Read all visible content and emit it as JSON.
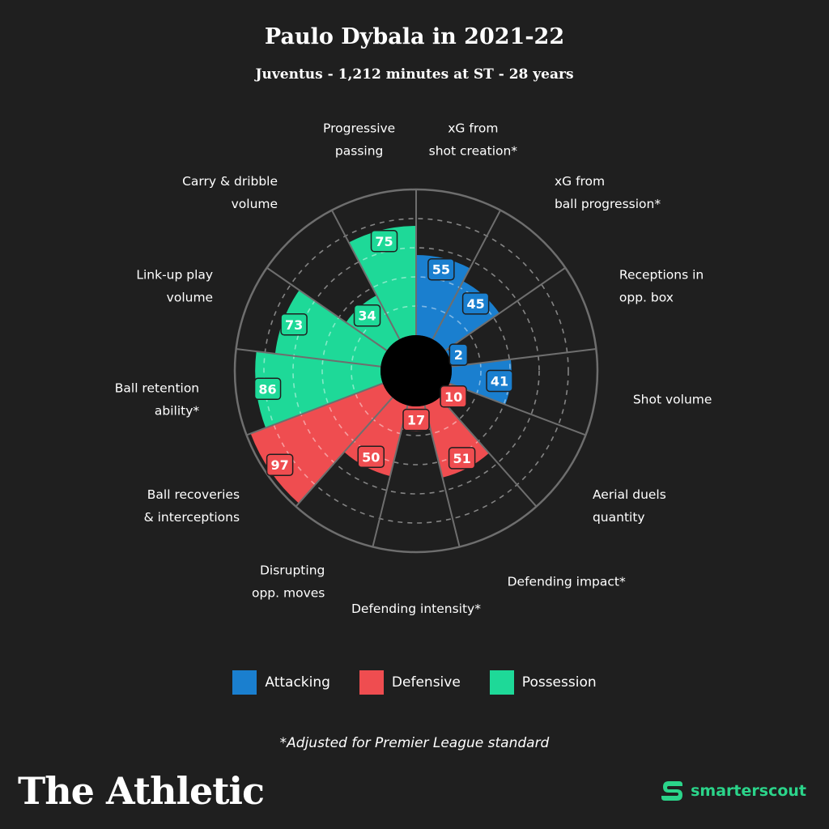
{
  "header": {
    "title": "Paulo Dybala in 2021-22",
    "subtitle": "Juventus - 1,212 minutes at ST - 28 years"
  },
  "colors": {
    "Attacking": "#1a7fcf",
    "Defensive": "#ef4d50",
    "Possession": "#1ed998",
    "background": "#1f1f1f"
  },
  "chart_data": {
    "type": "polar-bar",
    "max": 100,
    "rings": [
      20,
      40,
      60,
      80
    ],
    "segments": [
      {
        "label": [
          "xG from",
          "shot creation*"
        ],
        "value": 55,
        "category": "Attacking"
      },
      {
        "label": [
          "xG from",
          "ball progression*"
        ],
        "value": 45,
        "category": "Attacking"
      },
      {
        "label": [
          "Receptions in",
          "opp. box"
        ],
        "value": 2,
        "category": "Attacking"
      },
      {
        "label": [
          "Shot volume"
        ],
        "value": 41,
        "category": "Attacking"
      },
      {
        "label": [
          "Aerial duels",
          "quantity"
        ],
        "value": 10,
        "category": "Defensive"
      },
      {
        "label": [
          "Defending impact*"
        ],
        "value": 51,
        "category": "Defensive"
      },
      {
        "label": [
          "Defending intensity*"
        ],
        "value": 17,
        "category": "Defensive"
      },
      {
        "label": [
          "Disrupting",
          "opp. moves"
        ],
        "value": 50,
        "category": "Defensive"
      },
      {
        "label": [
          "Ball recoveries",
          "& interceptions"
        ],
        "value": 97,
        "category": "Defensive"
      },
      {
        "label": [
          "Ball retention",
          "ability*"
        ],
        "value": 86,
        "category": "Possession"
      },
      {
        "label": [
          "Link-up play",
          "volume"
        ],
        "value": 73,
        "category": "Possession"
      },
      {
        "label": [
          "Carry & dribble",
          "volume"
        ],
        "value": 34,
        "category": "Possession"
      },
      {
        "label": [
          "Progressive",
          "passing"
        ],
        "value": 75,
        "category": "Possession"
      }
    ]
  },
  "legend": [
    {
      "label": "Attacking",
      "color": "#1a7fcf"
    },
    {
      "label": "Defensive",
      "color": "#ef4d50"
    },
    {
      "label": "Possession",
      "color": "#1ed998"
    }
  ],
  "footnote": "*Adjusted for Premier League standard",
  "footer": {
    "brand": "The Athletic",
    "partner": "smarterscout"
  }
}
